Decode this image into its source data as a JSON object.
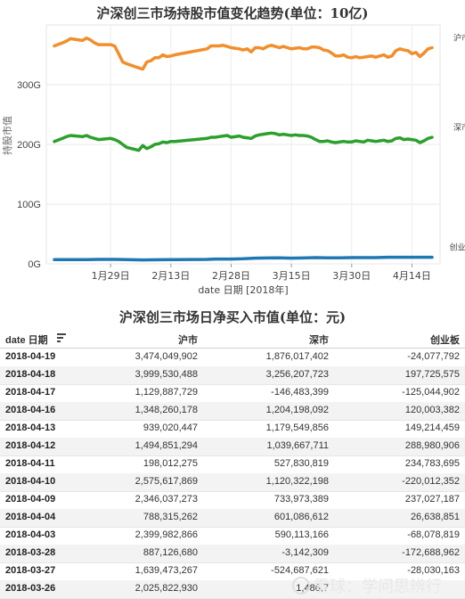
{
  "chart_data": {
    "type": "line",
    "title": "沪深创三市场持股市值变化趋势(单位：10亿)",
    "xlabel": "date 日期 [2018年]",
    "ylabel": "持股市值",
    "y_ticks": [
      "0G",
      "100G",
      "200G",
      "300G"
    ],
    "ylim": [
      0,
      400
    ],
    "x_ticks": [
      "1月29日",
      "2月13日",
      "2月28日",
      "3月15日",
      "3月30日",
      "4月14日"
    ],
    "x_tick_days": [
      29,
      44,
      59,
      74,
      89,
      104
    ],
    "x_range_days": [
      13,
      111
    ],
    "grid": true,
    "colors": {
      "沪市": "#f28e2b",
      "深市": "#2ca02c",
      "创业板": "#1f77b4"
    },
    "series": [
      {
        "name": "沪市",
        "color": "#f28e2b",
        "x_days": [
          15,
          17,
          18,
          19,
          22,
          23,
          24,
          25,
          26,
          29,
          30,
          31,
          32,
          33,
          36,
          37,
          38,
          39,
          40,
          41,
          42,
          43,
          44,
          45,
          53,
          54,
          55,
          56,
          57,
          58,
          59,
          61,
          62,
          63,
          64,
          65,
          66,
          67,
          68,
          69,
          70,
          71,
          72,
          73,
          74,
          75,
          76,
          77,
          78,
          79,
          80,
          81,
          82,
          83,
          84,
          85,
          86,
          87,
          88,
          89,
          90,
          91,
          92,
          93,
          94,
          95,
          96,
          97,
          98,
          99,
          100,
          101,
          102,
          103,
          104,
          105,
          106,
          107,
          108,
          109
        ],
        "values": [
          365,
          370,
          373,
          377,
          374,
          378,
          375,
          370,
          367,
          367,
          365,
          352,
          338,
          335,
          328,
          326,
          338,
          340,
          345,
          345,
          350,
          347,
          348,
          350,
          360,
          365,
          365,
          365,
          366,
          364,
          362,
          360,
          358,
          360,
          355,
          362,
          362,
          360,
          364,
          366,
          364,
          362,
          364,
          362,
          360,
          361,
          362,
          360,
          360,
          363,
          363,
          362,
          358,
          357,
          353,
          348,
          348,
          350,
          346,
          345,
          347,
          345,
          346,
          347,
          348,
          346,
          348,
          350,
          346,
          348,
          357,
          360,
          358,
          357,
          352,
          354,
          347,
          353,
          360,
          362
        ]
      },
      {
        "name": "深市",
        "color": "#2ca02c",
        "x_days": [
          15,
          17,
          18,
          19,
          22,
          23,
          24,
          25,
          26,
          29,
          30,
          31,
          32,
          33,
          36,
          37,
          38,
          39,
          40,
          41,
          42,
          43,
          44,
          45,
          53,
          54,
          55,
          56,
          57,
          58,
          59,
          61,
          62,
          63,
          64,
          65,
          66,
          67,
          68,
          69,
          70,
          71,
          72,
          73,
          74,
          75,
          76,
          77,
          78,
          79,
          80,
          81,
          82,
          83,
          84,
          85,
          86,
          87,
          88,
          89,
          90,
          91,
          92,
          93,
          94,
          95,
          96,
          97,
          98,
          99,
          100,
          101,
          102,
          103,
          104,
          105,
          106,
          107,
          108,
          109
        ],
        "values": [
          205,
          210,
          213,
          215,
          213,
          215,
          212,
          210,
          208,
          210,
          208,
          205,
          200,
          195,
          190,
          198,
          193,
          196,
          200,
          201,
          204,
          203,
          205,
          205,
          210,
          212,
          212,
          213,
          214,
          215,
          212,
          214,
          212,
          211,
          210,
          214,
          216,
          217,
          218,
          219,
          218,
          216,
          217,
          216,
          215,
          216,
          215,
          215,
          214,
          212,
          208,
          205,
          205,
          206,
          204,
          203,
          204,
          205,
          204,
          204,
          206,
          205,
          204,
          207,
          206,
          205,
          206,
          207,
          205,
          206,
          210,
          211,
          208,
          209,
          208,
          207,
          203,
          206,
          210,
          212
        ]
      },
      {
        "name": "创业板",
        "color": "#1f77b4",
        "x_days": [
          15,
          19,
          23,
          26,
          30,
          33,
          37,
          41,
          44,
          45,
          53,
          55,
          58,
          59,
          62,
          65,
          68,
          71,
          74,
          77,
          80,
          83,
          86,
          89,
          92,
          95,
          98,
          101,
          104,
          106,
          109
        ],
        "values": [
          7,
          7,
          7,
          7.5,
          7.5,
          7,
          6.5,
          6.8,
          7,
          7,
          7.5,
          8,
          8,
          8,
          8.5,
          9.5,
          9.8,
          10,
          9.5,
          9.8,
          10.5,
          10,
          10,
          10.5,
          10.5,
          10.5,
          11,
          11,
          11,
          11,
          11
        ]
      }
    ]
  },
  "table": {
    "title": "沪深创三市场日净买入市值(单位：元)",
    "headers": {
      "date": "date 日期",
      "sh": "沪市",
      "sz": "深市",
      "cyb": "创业板"
    },
    "rows": [
      {
        "date": "2018-04-19",
        "sh": "3,474,049,902",
        "sz": "1,876,017,402",
        "cyb": "-24,077,792"
      },
      {
        "date": "2018-04-18",
        "sh": "3,999,530,488",
        "sz": "3,256,207,723",
        "cyb": "197,725,575"
      },
      {
        "date": "2018-04-17",
        "sh": "1,129,887,729",
        "sz": "-146,483,399",
        "cyb": "-125,044,902"
      },
      {
        "date": "2018-04-16",
        "sh": "1,348,260,178",
        "sz": "1,204,198,092",
        "cyb": "120,003,382"
      },
      {
        "date": "2018-04-13",
        "sh": "939,020,447",
        "sz": "1,179,549,856",
        "cyb": "149,214,459"
      },
      {
        "date": "2018-04-12",
        "sh": "1,494,851,294",
        "sz": "1,039,667,711",
        "cyb": "288,980,906"
      },
      {
        "date": "2018-04-11",
        "sh": "198,012,275",
        "sz": "527,830,819",
        "cyb": "234,783,695"
      },
      {
        "date": "2018-04-10",
        "sh": "2,575,617,869",
        "sz": "1,120,322,198",
        "cyb": "-220,012,352"
      },
      {
        "date": "2018-04-09",
        "sh": "2,346,037,273",
        "sz": "733,973,389",
        "cyb": "237,027,187"
      },
      {
        "date": "2018-04-04",
        "sh": "788,315,262",
        "sz": "601,086,612",
        "cyb": "26,638,851"
      },
      {
        "date": "2018-04-03",
        "sh": "2,399,982,866",
        "sz": "590,113,166",
        "cyb": "-68,078,819"
      },
      {
        "date": "2018-03-28",
        "sh": "887,126,680",
        "sz": "-3,142,309",
        "cyb": "-172,688,962"
      },
      {
        "date": "2018-03-27",
        "sh": "1,639,473,267",
        "sz": "-524,687,621",
        "cyb": "-28,030,163"
      },
      {
        "date": "2018-03-26",
        "sh": "2,025,822,930",
        "sz": "1,486,7",
        "cyb": ""
      }
    ]
  },
  "watermark": "雪球：学问思辨行"
}
